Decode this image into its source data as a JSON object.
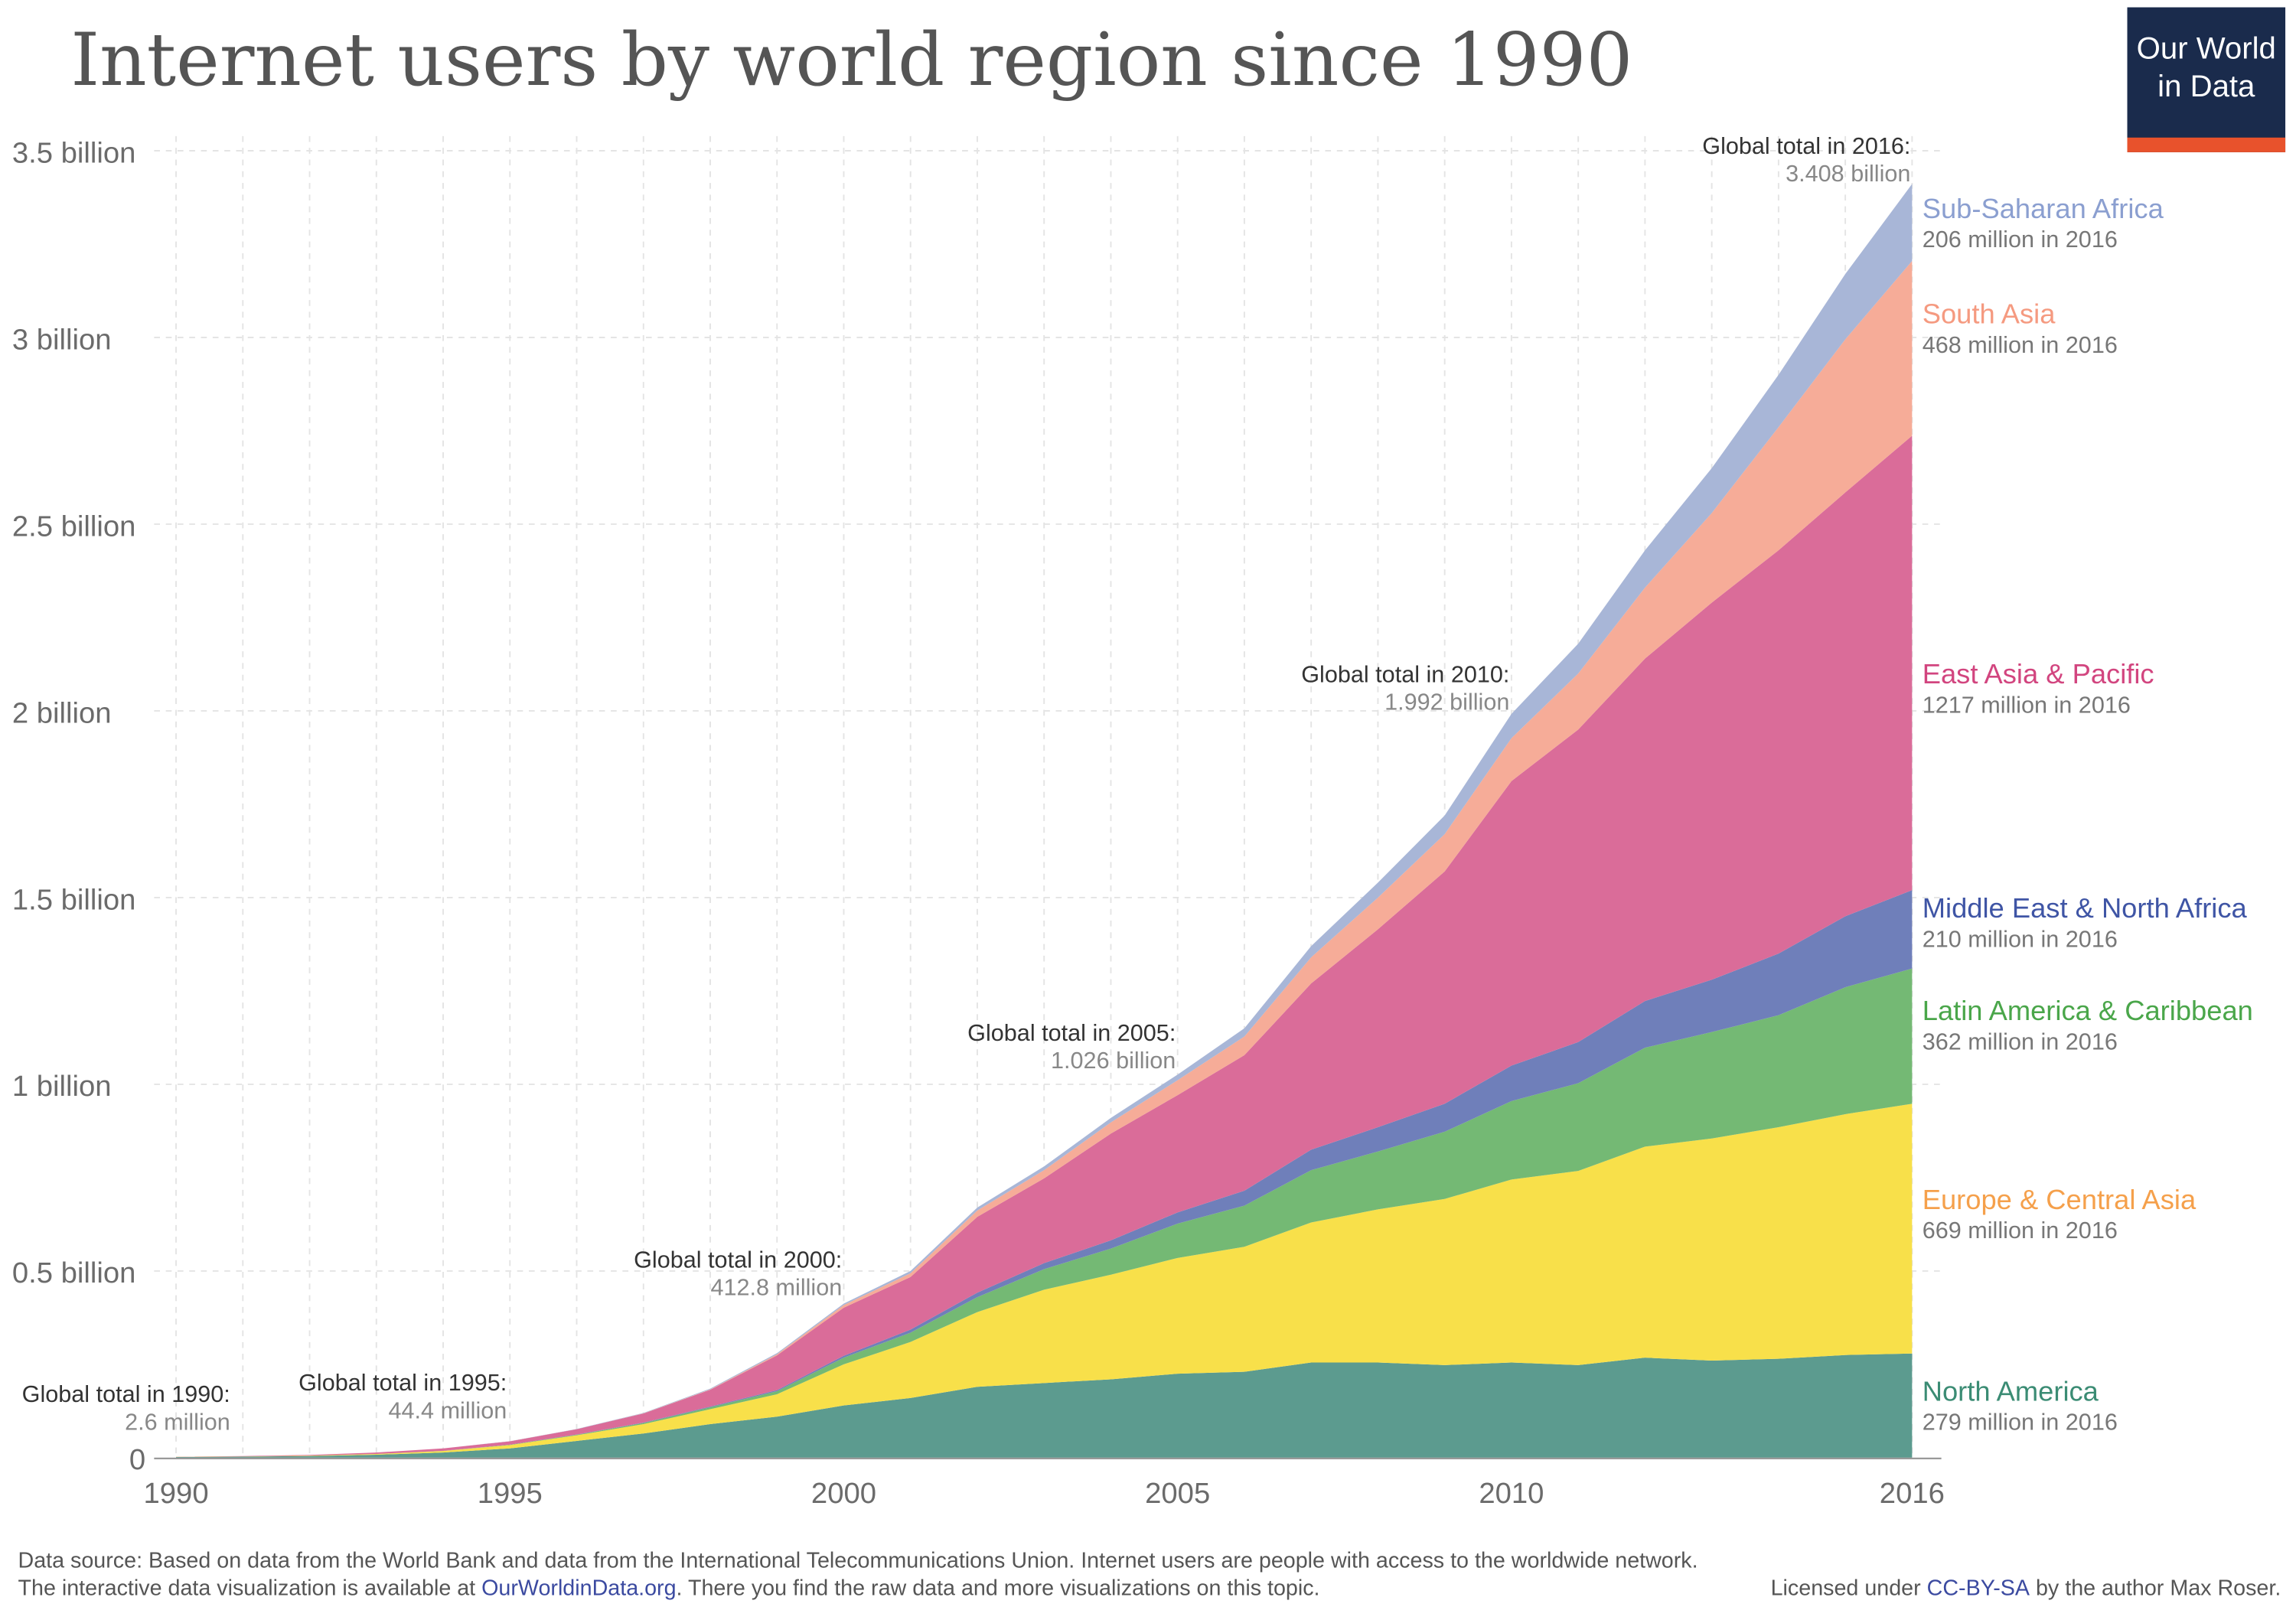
{
  "title": "Internet users by world region since 1990",
  "logo": {
    "line1": "Our World",
    "line2": "in Data",
    "bg": "#1a2b4c",
    "accent": "#e8522c"
  },
  "footer": {
    "line1": "Data source: Based on data from the World Bank and data from the International Telecommunications Union. Internet users are people with access to the worldwide network.",
    "line2_a": "The interactive data visualization is available at ",
    "line2_link": "OurWorldinData.org",
    "line2_b": ". There you find the raw data and more visualizations on this topic.",
    "license_a": "Licensed under ",
    "license_link": "CC-BY-SA",
    "license_b": " by the author Max Roser."
  },
  "annotations": [
    {
      "label": "Global total in 1990:",
      "value": "2.6 million",
      "year": 1990
    },
    {
      "label": "Global total in 1995:",
      "value": "44.4 million",
      "year": 1995
    },
    {
      "label": "Global total in 2000:",
      "value": "412.8 million",
      "year": 2000
    },
    {
      "label": "Global total in 2005:",
      "value": "1.026 billion",
      "year": 2005
    },
    {
      "label": "Global total in 2010:",
      "value": "1.992 billion",
      "year": 2010
    },
    {
      "label": "Global total in 2016:",
      "value": "3.408 billion",
      "year": 2016
    }
  ],
  "chart_data": {
    "type": "area",
    "stacked": true,
    "title": "Internet users by world region since 1990",
    "xlabel": "",
    "ylabel": "",
    "xlim": [
      1990,
      2016
    ],
    "ylim": [
      0,
      3500
    ],
    "y_unit": "million",
    "grid": true,
    "legend": "right (inline labels)",
    "x_ticks": [
      "1990",
      "1995",
      "2000",
      "2005",
      "2010",
      "2016"
    ],
    "x_tick_values": [
      1990,
      1995,
      2000,
      2005,
      2010,
      2016
    ],
    "y_ticks": [
      "0",
      "0.5 billion",
      "1 billion",
      "1.5 billion",
      "2 billion",
      "2.5 billion",
      "3 billion",
      "3.5 billion"
    ],
    "y_tick_values": [
      0,
      500,
      1000,
      1500,
      2000,
      2500,
      3000,
      3500
    ],
    "x": [
      1990,
      1991,
      1992,
      1993,
      1994,
      1995,
      1996,
      1997,
      1998,
      1999,
      2000,
      2001,
      2002,
      2003,
      2004,
      2005,
      2006,
      2007,
      2008,
      2009,
      2010,
      2011,
      2012,
      2013,
      2014,
      2015,
      2016
    ],
    "series": [
      {
        "name": "North America",
        "note": "279 million in 2016",
        "fill": "#5c9b8f",
        "label_color": "#3b8c74",
        "values": [
          2,
          2.8,
          4.5,
          8,
          14,
          25,
          45,
          65,
          90,
          110,
          140,
          160,
          190,
          200,
          210,
          225,
          230,
          255,
          255,
          248,
          255,
          248,
          268,
          260,
          265,
          275,
          279
        ]
      },
      {
        "name": "Europe & Central Asia",
        "note": "669 million in 2016",
        "fill": "#f8e04a",
        "label_color": "#f5a04b",
        "values": [
          0.4,
          0.6,
          1,
          2,
          4,
          9,
          15,
          25,
          40,
          60,
          110,
          150,
          200,
          250,
          280,
          310,
          335,
          375,
          410,
          445,
          490,
          520,
          565,
          595,
          620,
          645,
          669
        ]
      },
      {
        "name": "Latin America & Caribbean",
        "note": "362 million in 2016",
        "fill": "#74b974",
        "label_color": "#4aa64a",
        "values": [
          0,
          0,
          0.1,
          0.2,
          0.4,
          0.8,
          1.5,
          3,
          5,
          8,
          18,
          25,
          40,
          55,
          70,
          92,
          110,
          140,
          155,
          180,
          210,
          235,
          265,
          285,
          300,
          340,
          362
        ]
      },
      {
        "name": "Middle East & North Africa",
        "note": "210 million in 2016",
        "fill": "#6f7fba",
        "label_color": "#3f55a5",
        "values": [
          0,
          0,
          0,
          0,
          0.1,
          0.2,
          0.5,
          1,
          2,
          3,
          5,
          8,
          12,
          16,
          22,
          30,
          40,
          55,
          65,
          75,
          95,
          110,
          125,
          140,
          165,
          190,
          210
        ]
      },
      {
        "name": "East Asia & Pacific",
        "note": "1217 million in 2016",
        "fill": "#da6c99",
        "label_color": "#d2457f",
        "values": [
          0.2,
          1.1,
          1.9,
          3.8,
          6.4,
          9,
          14.3,
          24.5,
          45,
          93,
          128.8,
          141,
          203,
          227,
          286,
          314,
          363,
          445,
          530,
          622,
          762,
          837,
          917,
          1010,
          1080,
          1135,
          1217
        ]
      },
      {
        "name": "South Asia",
        "note": "468 million in 2016",
        "fill": "#f6ac98",
        "label_color": "#f59a80",
        "values": [
          0,
          0,
          0,
          0,
          0,
          0.1,
          0.2,
          0.5,
          1,
          3,
          7,
          10,
          17,
          22,
          30,
          40,
          50,
          70,
          85,
          100,
          115,
          150,
          190,
          240,
          330,
          410,
          468
        ]
      },
      {
        "name": "Sub-Saharan Africa",
        "note": "206 million in 2016",
        "fill": "#a8b6d7",
        "label_color": "#8b9fd0",
        "values": [
          0,
          0,
          0,
          0,
          0.1,
          0.3,
          0.5,
          1,
          2,
          3,
          4,
          6,
          8,
          10,
          12,
          15,
          22,
          30,
          40,
          50,
          65,
          80,
          100,
          120,
          140,
          175,
          206
        ]
      }
    ]
  }
}
